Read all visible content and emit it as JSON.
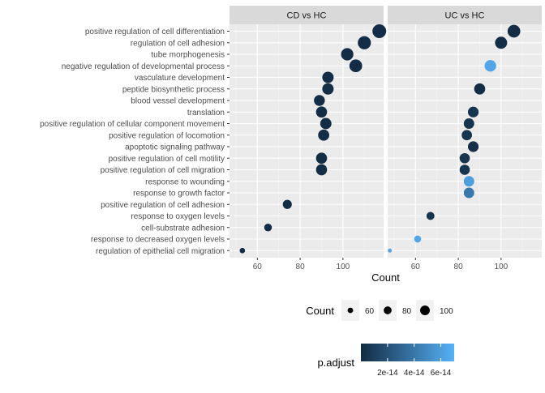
{
  "chart_data": {
    "type": "scatter",
    "subtype": "dotplot",
    "xlabel": "Count",
    "ylabel": "",
    "xlim": [
      47,
      119
    ],
    "x_ticks": [
      60,
      80,
      100
    ],
    "facets": [
      "CD vs HC",
      "UC vs HC"
    ],
    "categories": [
      "positive regulation of cell differentiation",
      "regulation of cell adhesion",
      "tube morphogenesis",
      "negative regulation of developmental process",
      "vasculature development",
      "peptide biosynthetic process",
      "blood vessel development",
      "translation",
      "positive regulation of cellular component movement",
      "positive regulation of locomotion",
      "apoptotic signaling pathway",
      "positive regulation of cell motility",
      "positive regulation of cell migration",
      "response to wounding",
      "response to growth factor",
      "positive regulation of cell adhesion",
      "response to oxygen levels",
      "cell-substrate adhesion",
      "response to decreased oxygen levels",
      "regulation of epithelial cell migration"
    ],
    "series": [
      {
        "name": "CD vs HC",
        "points": [
          {
            "term": "positive regulation of cell differentiation",
            "count": 117,
            "p_adjust": 1e-15
          },
          {
            "term": "regulation of cell adhesion",
            "count": 110,
            "p_adjust": 1e-15
          },
          {
            "term": "tube morphogenesis",
            "count": 102,
            "p_adjust": 1e-15
          },
          {
            "term": "negative regulation of developmental process",
            "count": 106,
            "p_adjust": 1e-15
          },
          {
            "term": "vasculature development",
            "count": 93,
            "p_adjust": 1e-15
          },
          {
            "term": "peptide biosynthetic process",
            "count": 93,
            "p_adjust": 1e-15
          },
          {
            "term": "blood vessel development",
            "count": 89,
            "p_adjust": 1e-15
          },
          {
            "term": "translation",
            "count": 90,
            "p_adjust": 1e-15
          },
          {
            "term": "positive regulation of cellular component movement",
            "count": 92,
            "p_adjust": 1e-15
          },
          {
            "term": "positive regulation of locomotion",
            "count": 91,
            "p_adjust": 1e-15
          },
          {
            "term": "positive regulation of cell motility",
            "count": 90,
            "p_adjust": 1e-15
          },
          {
            "term": "positive regulation of cell migration",
            "count": 90,
            "p_adjust": 1e-15
          },
          {
            "term": "positive regulation of cell adhesion",
            "count": 74,
            "p_adjust": 1e-15
          },
          {
            "term": "cell-substrate adhesion",
            "count": 65,
            "p_adjust": 1e-15
          },
          {
            "term": "regulation of epithelial cell migration",
            "count": 53,
            "p_adjust": 1e-15
          }
        ]
      },
      {
        "name": "UC vs HC",
        "points": [
          {
            "term": "positive regulation of cell differentiation",
            "count": 106,
            "p_adjust": 1e-15
          },
          {
            "term": "regulation of cell adhesion",
            "count": 100,
            "p_adjust": 1e-15
          },
          {
            "term": "negative regulation of developmental process",
            "count": 95,
            "p_adjust": 6.4e-14
          },
          {
            "term": "peptide biosynthetic process",
            "count": 90,
            "p_adjust": 1e-15
          },
          {
            "term": "translation",
            "count": 87,
            "p_adjust": 5e-15
          },
          {
            "term": "positive regulation of cellular component movement",
            "count": 85,
            "p_adjust": 5e-15
          },
          {
            "term": "positive regulation of locomotion",
            "count": 84,
            "p_adjust": 5e-15
          },
          {
            "term": "apoptotic signaling pathway",
            "count": 87,
            "p_adjust": 2e-15
          },
          {
            "term": "positive regulation of cell motility",
            "count": 83,
            "p_adjust": 5e-15
          },
          {
            "term": "positive regulation of cell migration",
            "count": 83,
            "p_adjust": 5e-15
          },
          {
            "term": "response to wounding",
            "count": 85,
            "p_adjust": 6e-14
          },
          {
            "term": "response to growth factor",
            "count": 85,
            "p_adjust": 4e-14
          },
          {
            "term": "response to oxygen levels",
            "count": 67,
            "p_adjust": 5e-15
          },
          {
            "term": "response to decreased oxygen levels",
            "count": 61,
            "p_adjust": 6.4e-14
          },
          {
            "term": "regulation of epithelial cell migration",
            "count": 48,
            "p_adjust": 6.4e-14
          }
        ]
      }
    ],
    "size_legend": {
      "title": "Count",
      "values": [
        60,
        80,
        100
      ],
      "labels": [
        "60",
        "80",
        "100"
      ]
    },
    "color_legend": {
      "title": "p.adjust",
      "range": [
        0,
        7e-14
      ],
      "ticks": [
        2e-14,
        4e-14,
        6e-14
      ],
      "tick_labels": [
        "2e-14",
        "4e-14",
        "6e-14"
      ],
      "low_color": "#132B43",
      "high_color": "#56B1F7"
    },
    "legend_position": "bottom",
    "grid": true,
    "panel_background": "#EBEBEB",
    "strip_background": "#D9D9D9"
  }
}
